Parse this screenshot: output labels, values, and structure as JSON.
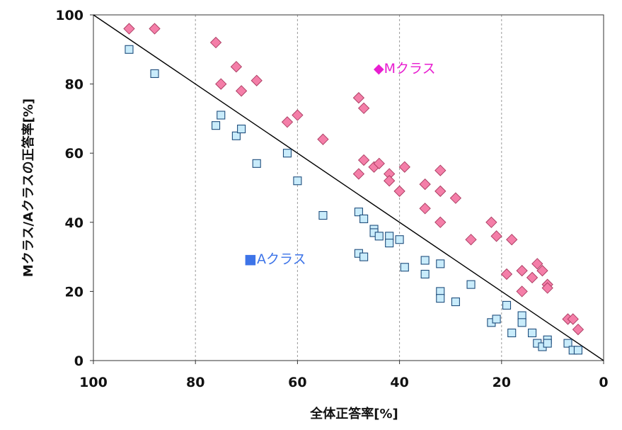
{
  "chart_data": {
    "type": "scatter",
    "title": "",
    "xlabel": "全体正答率[%]",
    "ylabel": "Mクラス/Aクラスの正答率[%]",
    "xlim": [
      100,
      0
    ],
    "ylim": [
      0,
      100
    ],
    "x_reversed": true,
    "x_ticks": [
      "100",
      "80",
      "60",
      "40",
      "20",
      "0"
    ],
    "y_ticks": [
      "0",
      "20",
      "40",
      "60",
      "80",
      "100"
    ],
    "grid": {
      "vertical": true,
      "horizontal": false,
      "style": "dashed"
    },
    "reference_line": {
      "from": [
        100,
        100
      ],
      "to": [
        0,
        0
      ]
    },
    "legend_placement": "in-plot",
    "series": [
      {
        "name": "Mクラス",
        "legend_label": "◆Mクラス",
        "marker": "diamond",
        "color": "#f47ea8",
        "legend_color": "#e81ed0",
        "points": [
          [
            93,
            96
          ],
          [
            88,
            96
          ],
          [
            76,
            92
          ],
          [
            75,
            80
          ],
          [
            72,
            85
          ],
          [
            71,
            78
          ],
          [
            68,
            81
          ],
          [
            62,
            69
          ],
          [
            60,
            71
          ],
          [
            55,
            64
          ],
          [
            48,
            76
          ],
          [
            48,
            54
          ],
          [
            47,
            73
          ],
          [
            47,
            58
          ],
          [
            45,
            56
          ],
          [
            44,
            57
          ],
          [
            42,
            54
          ],
          [
            42,
            52
          ],
          [
            40,
            49
          ],
          [
            39,
            56
          ],
          [
            35,
            51
          ],
          [
            35,
            44
          ],
          [
            32,
            55
          ],
          [
            32,
            49
          ],
          [
            32,
            40
          ],
          [
            29,
            47
          ],
          [
            26,
            35
          ],
          [
            22,
            40
          ],
          [
            21,
            36
          ],
          [
            19,
            25
          ],
          [
            18,
            35
          ],
          [
            16,
            26
          ],
          [
            16,
            20
          ],
          [
            14,
            24
          ],
          [
            13,
            28
          ],
          [
            12,
            26
          ],
          [
            11,
            22
          ],
          [
            11,
            21
          ],
          [
            7,
            12
          ],
          [
            6,
            12
          ],
          [
            5,
            9
          ]
        ]
      },
      {
        "name": "Aクラス",
        "legend_label": "■Aクラス",
        "marker": "square",
        "color": "#c9ecfb",
        "legend_color": "#3d74e8",
        "points": [
          [
            93,
            90
          ],
          [
            88,
            83
          ],
          [
            76,
            68
          ],
          [
            75,
            71
          ],
          [
            72,
            65
          ],
          [
            71,
            67
          ],
          [
            68,
            57
          ],
          [
            62,
            60
          ],
          [
            60,
            52
          ],
          [
            55,
            42
          ],
          [
            48,
            43
          ],
          [
            48,
            31
          ],
          [
            47,
            41
          ],
          [
            47,
            30
          ],
          [
            45,
            38
          ],
          [
            45,
            37
          ],
          [
            44,
            36
          ],
          [
            42,
            36
          ],
          [
            42,
            34
          ],
          [
            40,
            35
          ],
          [
            39,
            27
          ],
          [
            35,
            29
          ],
          [
            35,
            25
          ],
          [
            32,
            28
          ],
          [
            32,
            20
          ],
          [
            32,
            18
          ],
          [
            29,
            17
          ],
          [
            26,
            22
          ],
          [
            22,
            11
          ],
          [
            21,
            12
          ],
          [
            19,
            16
          ],
          [
            18,
            8
          ],
          [
            16,
            13
          ],
          [
            16,
            11
          ],
          [
            14,
            8
          ],
          [
            13,
            5
          ],
          [
            12,
            4
          ],
          [
            11,
            6
          ],
          [
            11,
            5
          ],
          [
            7,
            5
          ],
          [
            6,
            3
          ],
          [
            5,
            3
          ]
        ]
      }
    ]
  }
}
